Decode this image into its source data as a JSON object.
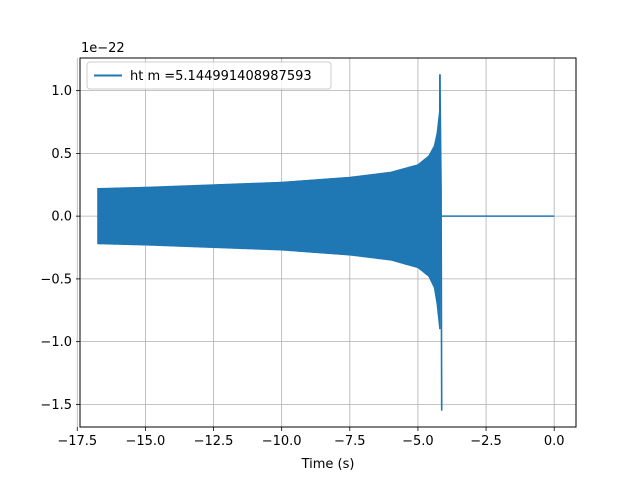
{
  "chart_data": {
    "type": "line",
    "title": "",
    "xlabel": "Time (s)",
    "ylabel": "",
    "y_offset_label": "1e−22",
    "xlim": [
      -17.4,
      0.8
    ],
    "ylim": [
      -1.68,
      1.26
    ],
    "xticks": [
      -17.5,
      -15.0,
      -12.5,
      -10.0,
      -7.5,
      -5.0,
      -2.5,
      0.0
    ],
    "xtick_labels": [
      "−17.5",
      "−15.0",
      "−12.5",
      "−10.0",
      "−7.5",
      "−5.0",
      "−2.5",
      "0.0"
    ],
    "yticks": [
      -1.5,
      -1.0,
      -0.5,
      0.0,
      0.5,
      1.0
    ],
    "ytick_labels": [
      "−1.5",
      "−1.0",
      "−0.5",
      "0.0",
      "0.5",
      "1.0"
    ],
    "grid": true,
    "legend_position": "top-left",
    "series": [
      {
        "name": "ht m =5.144991408987593",
        "color": "#1f77b4",
        "x_start": -16.75,
        "x_end": 0.0,
        "merger_time": -4.15,
        "envelope": {
          "x": [
            -16.75,
            -15.0,
            -12.5,
            -10.0,
            -7.5,
            -6.0,
            -5.0,
            -4.6,
            -4.4,
            -4.3,
            -4.2
          ],
          "upper": [
            0.22,
            0.23,
            0.25,
            0.27,
            0.31,
            0.35,
            0.41,
            0.48,
            0.56,
            0.66,
            0.85
          ],
          "lower": [
            -0.22,
            -0.23,
            -0.25,
            -0.27,
            -0.31,
            -0.35,
            -0.41,
            -0.48,
            -0.57,
            -0.7,
            -0.9
          ]
        },
        "peak_max": 1.13,
        "peak_min": -1.55
      }
    ]
  }
}
